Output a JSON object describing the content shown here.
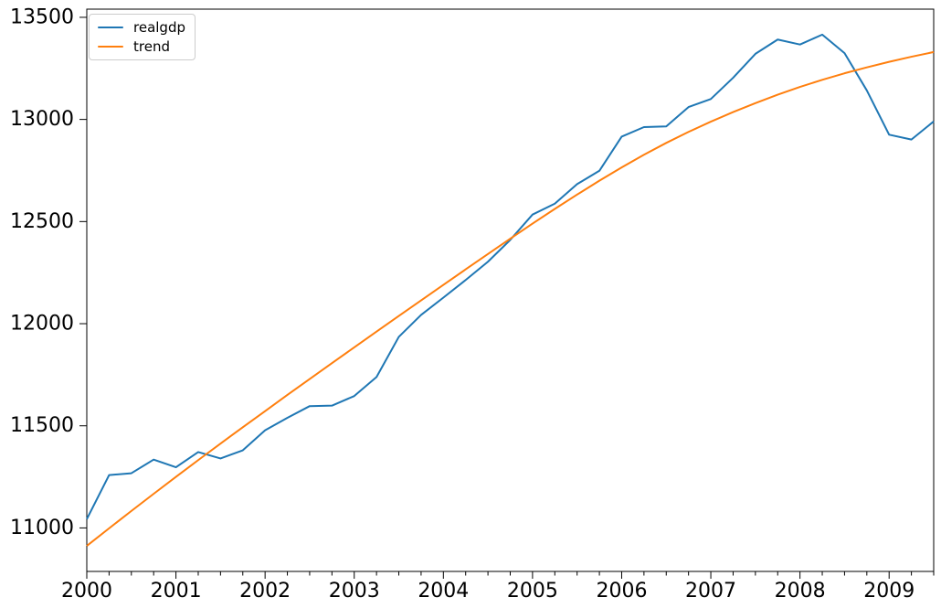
{
  "figure": {
    "background": "#ffffff",
    "spine_color": "#000000",
    "tick_color": "#000000"
  },
  "legend": {
    "position": "upper-left",
    "items": [
      {
        "label": "realgdp",
        "color": "#1f77b4"
      },
      {
        "label": "trend",
        "color": "#ff7f0e"
      }
    ]
  },
  "chart_data": {
    "type": "line",
    "title": "",
    "xlabel": "",
    "ylabel": "",
    "grid": false,
    "legend_position": "upper-left",
    "x_quarters": [
      "2000Q1",
      "2000Q2",
      "2000Q3",
      "2000Q4",
      "2001Q1",
      "2001Q2",
      "2001Q3",
      "2001Q4",
      "2002Q1",
      "2002Q2",
      "2002Q3",
      "2002Q4",
      "2003Q1",
      "2003Q2",
      "2003Q3",
      "2003Q4",
      "2004Q1",
      "2004Q2",
      "2004Q3",
      "2004Q4",
      "2005Q1",
      "2005Q2",
      "2005Q3",
      "2005Q4",
      "2006Q1",
      "2006Q2",
      "2006Q3",
      "2006Q4",
      "2007Q1",
      "2007Q2",
      "2007Q3",
      "2007Q4",
      "2008Q1",
      "2008Q2",
      "2008Q3",
      "2008Q4",
      "2009Q1",
      "2009Q2",
      "2009Q3"
    ],
    "x_tick_labels": [
      "2000",
      "2001",
      "2002",
      "2003",
      "2004",
      "2005",
      "2006",
      "2007",
      "2008",
      "2009"
    ],
    "x_tick_positions": [
      0,
      4,
      8,
      12,
      16,
      20,
      24,
      28,
      32,
      36
    ],
    "x_minor_every": 1,
    "y_ticks": [
      11000,
      11500,
      12000,
      12500,
      13000,
      13500
    ],
    "xlim": [
      0,
      38
    ],
    "ylim": [
      10787,
      13540
    ],
    "series": [
      {
        "name": "realgdp",
        "color": "#1f77b4",
        "values": [
          11043.0,
          11258.5,
          11267.9,
          11334.5,
          11297.2,
          11371.3,
          11340.1,
          11380.1,
          11477.9,
          11538.8,
          11596.4,
          11598.8,
          11645.8,
          11738.7,
          11935.5,
          12042.8,
          12127.6,
          12213.8,
          12303.5,
          12410.3,
          12534.1,
          12587.5,
          12683.2,
          12748.7,
          12915.9,
          12962.5,
          12965.9,
          13060.7,
          13099.9,
          13204.0,
          13321.1,
          13391.2,
          13366.9,
          13415.3,
          13324.6,
          13141.9,
          12925.4,
          12901.5,
          12990.3
        ]
      },
      {
        "name": "trend",
        "color": "#ff7f0e",
        "values": [
          10912,
          10998,
          11083,
          11167,
          11250,
          11332,
          11413,
          11493,
          11572,
          11651,
          11729,
          11807,
          11884,
          11961,
          12038,
          12114,
          12190,
          12266,
          12341,
          12416,
          12490,
          12562,
          12632,
          12700,
          12765,
          12827,
          12885,
          12939,
          12989,
          13036,
          13080,
          13121,
          13159,
          13194,
          13226,
          13255,
          13282,
          13307,
          13330
        ]
      }
    ]
  }
}
